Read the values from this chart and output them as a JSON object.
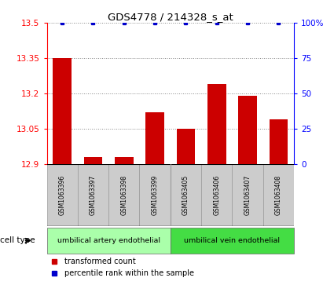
{
  "title": "GDS4778 / 214328_s_at",
  "samples": [
    "GSM1063396",
    "GSM1063397",
    "GSM1063398",
    "GSM1063399",
    "GSM1063405",
    "GSM1063406",
    "GSM1063407",
    "GSM1063408"
  ],
  "bar_values": [
    13.35,
    12.93,
    12.93,
    13.12,
    13.05,
    13.24,
    13.19,
    13.09
  ],
  "percentile_values": [
    100,
    100,
    100,
    100,
    100,
    100,
    100,
    100
  ],
  "ylim_left": [
    12.9,
    13.5
  ],
  "ylim_right": [
    0,
    100
  ],
  "yticks_left": [
    12.9,
    13.05,
    13.2,
    13.35,
    13.5
  ],
  "yticks_right": [
    0,
    25,
    50,
    75,
    100
  ],
  "bar_color": "#cc0000",
  "dot_color": "#0000cc",
  "bar_width": 0.6,
  "cell_type_colors": [
    "#aaffaa",
    "#44dd44"
  ],
  "cell_type_labels": [
    "umbilical artery endothelial",
    "umbilical vein endothelial"
  ],
  "cell_type_sizes": [
    4,
    4
  ],
  "legend_labels": [
    "transformed count",
    "percentile rank within the sample"
  ],
  "legend_colors": [
    "#cc0000",
    "#0000cc"
  ],
  "bg_color": "#ffffff",
  "grid_color": "#888888",
  "sample_box_color": "#cccccc",
  "sample_box_edge": "#999999"
}
